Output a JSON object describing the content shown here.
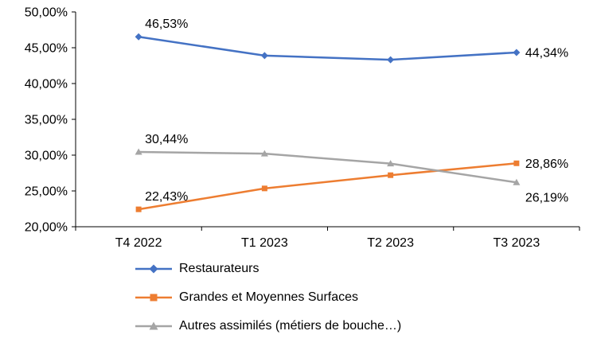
{
  "chart_data": {
    "type": "line",
    "title": "",
    "xlabel": "",
    "ylabel": "",
    "categories": [
      "T4 2022",
      "T1 2023",
      "T2 2023",
      "T3 2023"
    ],
    "ylim": [
      20,
      50
    ],
    "ytick_step": 5,
    "ytick_labels": [
      "20,00%",
      "25,00%",
      "30,00%",
      "35,00%",
      "40,00%",
      "45,00%",
      "50,00%"
    ],
    "grid": false,
    "legend_position": "bottom-left",
    "series": [
      {
        "name": "Restaurateurs",
        "color": "#4472C4",
        "marker": "diamond",
        "values": [
          46.53,
          43.9,
          43.32,
          44.34
        ],
        "data_labels": [
          {
            "index": 0,
            "text": "46,53%",
            "placement": "above"
          },
          {
            "index": 3,
            "text": "44,34%",
            "placement": "right"
          }
        ]
      },
      {
        "name": "Grandes et Moyennes Surfaces",
        "color": "#ED7D31",
        "marker": "square",
        "values": [
          22.43,
          25.35,
          27.2,
          28.86
        ],
        "data_labels": [
          {
            "index": 0,
            "text": "22,43%",
            "placement": "above"
          },
          {
            "index": 3,
            "text": "28,86%",
            "placement": "right"
          }
        ]
      },
      {
        "name": "Autres assimilés (métiers de bouche…)",
        "color": "#A5A5A5",
        "marker": "triangle",
        "values": [
          30.44,
          30.21,
          28.82,
          26.19
        ],
        "data_labels": [
          {
            "index": 0,
            "text": "30,44%",
            "placement": "above"
          },
          {
            "index": 3,
            "text": "26,19%",
            "placement": "below-right"
          }
        ]
      }
    ]
  }
}
